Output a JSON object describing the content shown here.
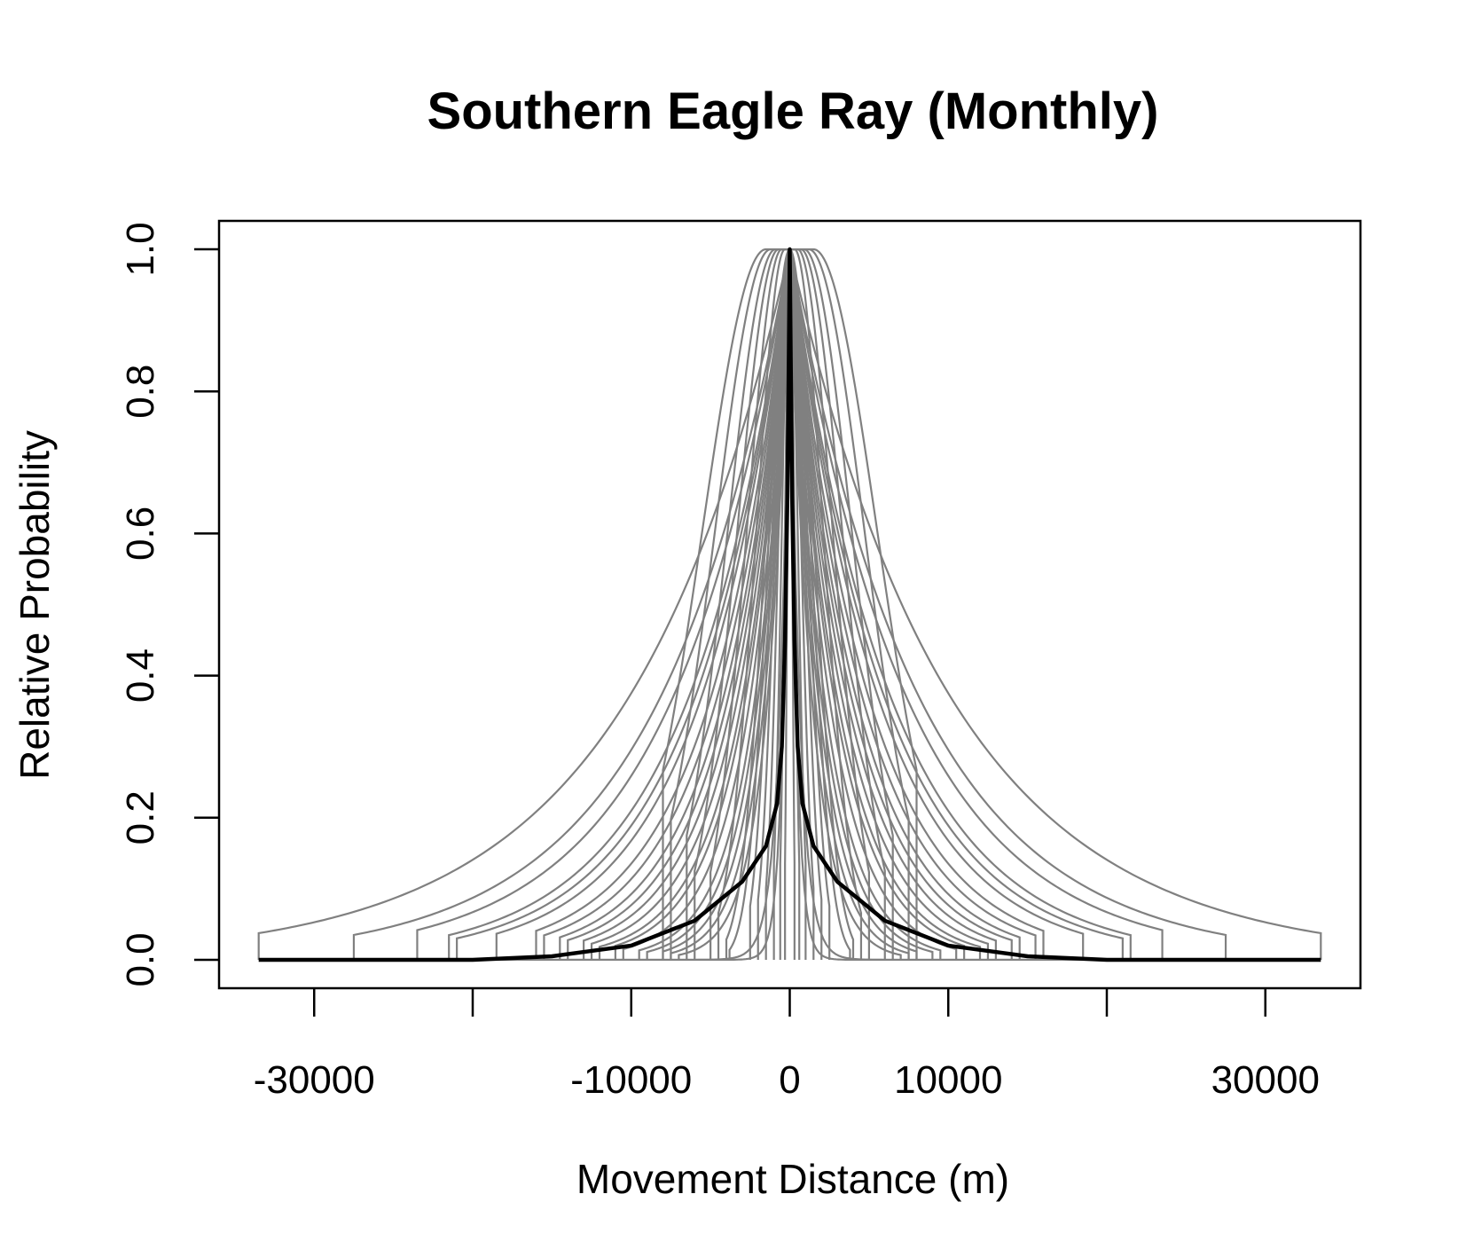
{
  "chart_data": {
    "type": "line",
    "title": "Southern Eagle Ray (Monthly)",
    "xlabel": "Movement Distance (m)",
    "ylabel": "Relative Probability",
    "xlim": [
      -36000,
      36000
    ],
    "ylim": [
      -0.04,
      1.04
    ],
    "x_ticks": [
      -30000,
      -20000,
      -10000,
      0,
      10000,
      20000,
      30000
    ],
    "x_tick_labels": [
      "-30000",
      "",
      "-10000",
      "0",
      "10000",
      "",
      "30000"
    ],
    "y_ticks": [
      0.0,
      0.2,
      0.4,
      0.6,
      0.8,
      1.0
    ],
    "y_tick_labels": [
      "0.0",
      "0.2",
      "0.4",
      "0.6",
      "0.8",
      "1.0"
    ],
    "grid": false,
    "legend": "none",
    "colors": {
      "samples": "#808080",
      "mean": "#000000"
    },
    "series": [
      {
        "role": "samples",
        "color": "#808080",
        "lines": [
          {
            "kind": "exp",
            "range": 33500,
            "scale": 10200,
            "plateau": 0
          },
          {
            "kind": "exp",
            "range": 27500,
            "scale": 8200,
            "plateau": 0
          },
          {
            "kind": "exp",
            "range": 23500,
            "scale": 7400,
            "plateau": 0
          },
          {
            "kind": "exp",
            "range": 21500,
            "scale": 6400,
            "plateau": 0
          },
          {
            "kind": "exp",
            "range": 21000,
            "scale": 6000,
            "plateau": 0
          },
          {
            "kind": "exp",
            "range": 18500,
            "scale": 5600,
            "plateau": 0
          },
          {
            "kind": "exp",
            "range": 16000,
            "scale": 5000,
            "plateau": 0
          },
          {
            "kind": "exp",
            "range": 15500,
            "scale": 4600,
            "plateau": 0
          },
          {
            "kind": "exp",
            "range": 14500,
            "scale": 4200,
            "plateau": 0
          },
          {
            "kind": "exp",
            "range": 14000,
            "scale": 3900,
            "plateau": 0
          },
          {
            "kind": "exp",
            "range": 13000,
            "scale": 3600,
            "plateau": 0
          },
          {
            "kind": "exp",
            "range": 12500,
            "scale": 3300,
            "plateau": 0
          },
          {
            "kind": "exp",
            "range": 12000,
            "scale": 3000,
            "plateau": 0
          },
          {
            "kind": "exp",
            "range": 11000,
            "scale": 2800,
            "plateau": 0
          },
          {
            "kind": "exp",
            "range": 10500,
            "scale": 2500,
            "plateau": 0
          },
          {
            "kind": "exp",
            "range": 9500,
            "scale": 2200,
            "plateau": 0
          },
          {
            "kind": "exp",
            "range": 9000,
            "scale": 2000,
            "plateau": 0
          },
          {
            "kind": "exp",
            "range": 8000,
            "scale": 1800,
            "plateau": 0
          },
          {
            "kind": "exp",
            "range": 7500,
            "scale": 1600,
            "plateau": 0
          },
          {
            "kind": "exp",
            "range": 7000,
            "scale": 1400,
            "plateau": 0
          },
          {
            "kind": "gaus",
            "range": 8000,
            "scale": 4000,
            "plateau": 1500
          },
          {
            "kind": "gaus",
            "range": 7500,
            "scale": 3500,
            "plateau": 1200
          },
          {
            "kind": "gaus",
            "range": 6500,
            "scale": 3000,
            "plateau": 900
          },
          {
            "kind": "gaus",
            "range": 6000,
            "scale": 2600,
            "plateau": 700
          },
          {
            "kind": "gaus",
            "range": 5000,
            "scale": 2200,
            "plateau": 500
          },
          {
            "kind": "gaus",
            "range": 4500,
            "scale": 1800,
            "plateau": 300
          },
          {
            "kind": "gaus",
            "range": 4000,
            "scale": 1500,
            "plateau": 0
          },
          {
            "kind": "gaus",
            "range": 3800,
            "scale": 1300,
            "plateau": 0
          },
          {
            "kind": "gaus",
            "range": 2500,
            "scale": 1100,
            "plateau": 0
          },
          {
            "kind": "gaus",
            "range": 2000,
            "scale": 900,
            "plateau": 0
          },
          {
            "kind": "gaus",
            "range": 1500,
            "scale": 700,
            "plateau": 0
          },
          {
            "kind": "gaus",
            "range": 1000,
            "scale": 500,
            "plateau": 0
          },
          {
            "kind": "gaus",
            "range": 600,
            "scale": 300,
            "plateau": 0
          },
          {
            "kind": "gaus",
            "range": 300,
            "scale": 150,
            "plateau": 0
          },
          {
            "kind": "exp",
            "range": 25000,
            "scale": 600,
            "plateau": 0
          },
          {
            "kind": "exp",
            "range": 20000,
            "scale": 400,
            "plateau": 0
          }
        ]
      },
      {
        "role": "mean",
        "color": "#000000",
        "lines": [
          {
            "kind": "mean",
            "range": 33500,
            "peak": [
              0,
              1.0
            ],
            "points": [
              [
                -33500,
                0.0
              ],
              [
                -20000,
                0.0
              ],
              [
                -15000,
                0.005
              ],
              [
                -10000,
                0.02
              ],
              [
                -6000,
                0.055
              ],
              [
                -3000,
                0.11
              ],
              [
                -1500,
                0.16
              ],
              [
                -800,
                0.22
              ],
              [
                -500,
                0.3
              ],
              [
                -300,
                0.45
              ],
              [
                -150,
                0.65
              ],
              [
                -60,
                0.85
              ],
              [
                0,
                1.0
              ],
              [
                60,
                0.85
              ],
              [
                150,
                0.65
              ],
              [
                300,
                0.45
              ],
              [
                500,
                0.3
              ],
              [
                800,
                0.22
              ],
              [
                1500,
                0.16
              ],
              [
                3000,
                0.11
              ],
              [
                6000,
                0.055
              ],
              [
                10000,
                0.02
              ],
              [
                15000,
                0.005
              ],
              [
                20000,
                0.0
              ],
              [
                33500,
                0.0
              ]
            ]
          }
        ]
      }
    ]
  }
}
